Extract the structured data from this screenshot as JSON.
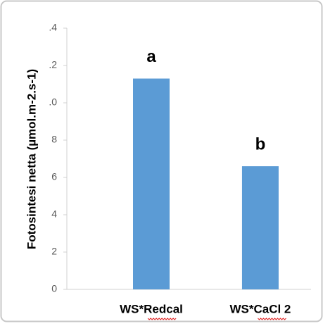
{
  "chart_data": {
    "type": "bar",
    "y_label": "Fotosintesi netta (µmol.m-2.s-1)",
    "categories": [
      "WS*Redcal",
      "WS*CaCl 2"
    ],
    "values": [
      11.3,
      6.6
    ],
    "annotations": [
      "a",
      "b"
    ],
    "color": "#5b9bd5",
    "ylim": [
      0,
      14
    ],
    "yticks": [
      0,
      2,
      4,
      6,
      8,
      {
        "value": 10,
        "label": ".0"
      },
      {
        "value": 12,
        "label": ".2"
      },
      {
        "value": 14,
        "label": ".4"
      }
    ],
    "grid": false
  }
}
